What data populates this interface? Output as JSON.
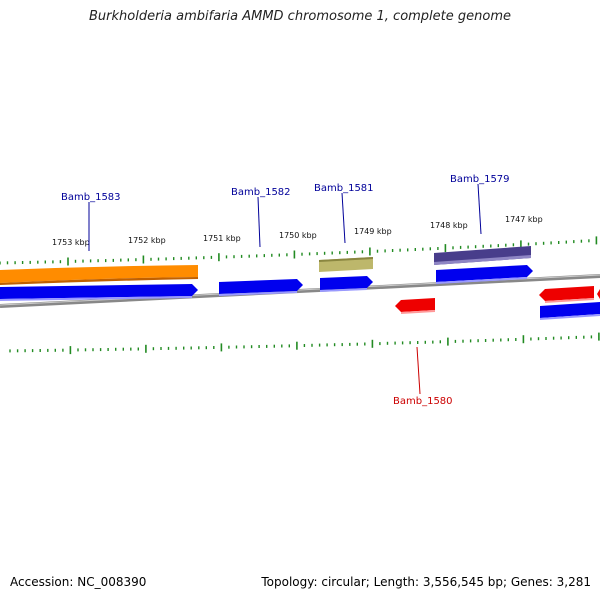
{
  "title": "Burkholderia ambifaria AMMD chromosome 1, complete genome",
  "footer": {
    "accession": "Accession: NC_008390",
    "summary": "Topology: circular; Length: 3,556,545 bp; Genes: 3,281"
  },
  "colors": {
    "forward_gene": "#0000ee",
    "reverse_gene": "#ee0000",
    "orange_feature": "#ff8c00",
    "khaki_feature": "#bdb76b",
    "purple_feature": "#483d8b",
    "tick": "#228b22",
    "backbone": "#888888",
    "forward_label": "#000099",
    "reverse_label": "#cc0000"
  },
  "ticks": [
    "1753 kbp",
    "1752 kbp",
    "1751 kbp",
    "1750 kbp",
    "1749 kbp",
    "1748 kbp",
    "1747 kbp"
  ],
  "gene_labels": [
    {
      "name": "Bamb_1583",
      "strand": "forward"
    },
    {
      "name": "Bamb_1582",
      "strand": "forward"
    },
    {
      "name": "Bamb_1581",
      "strand": "forward"
    },
    {
      "name": "Bamb_1579",
      "strand": "forward"
    },
    {
      "name": "Bamb_1580",
      "strand": "reverse"
    }
  ]
}
